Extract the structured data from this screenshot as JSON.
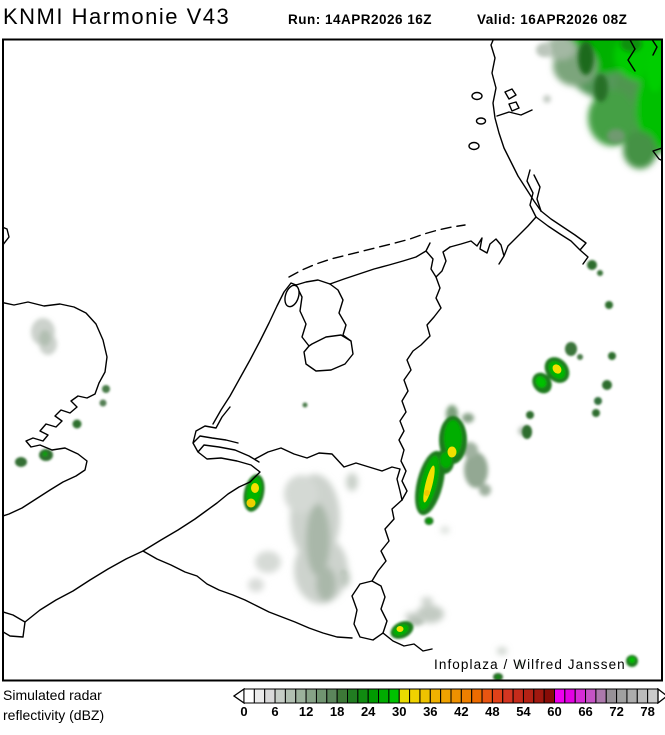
{
  "header": {
    "model_title": "KNMI Harmonie V43",
    "run_label": "Run: 14APR2026 16Z",
    "valid_label": "Valid: 16APR2026 08Z"
  },
  "map": {
    "attribution": "Infoplaza / Wilfred Janssen"
  },
  "legend": {
    "label_line1": "Simulated radar",
    "label_line2": "reflectivity (dBZ)",
    "ticks": [
      "0",
      "6",
      "12",
      "18",
      "24",
      "30",
      "36",
      "42",
      "48",
      "54",
      "60",
      "66",
      "72",
      "78"
    ],
    "scale_min": 0,
    "scale_max": 80,
    "cell_step_dbz": 2,
    "cell_colors": [
      "#ffffff",
      "#ebebeb",
      "#d9d9d9",
      "#c6cdc6",
      "#b1bfb1",
      "#9cb19c",
      "#87a287",
      "#719471",
      "#5c865c",
      "#3d7837",
      "#217c21",
      "#108b10",
      "#009a00",
      "#00ac00",
      "#00c100",
      "#e9da00",
      "#efd200",
      "#eec300",
      "#f0b100",
      "#f0a200",
      "#ef9100",
      "#ee7f00",
      "#ed6b00",
      "#e95511",
      "#e04119",
      "#d43521",
      "#c52b1b",
      "#b52215",
      "#a1180f",
      "#880c07",
      "#ef00ef",
      "#e300e3",
      "#d72ad7",
      "#c553c5",
      "#ac79ac",
      "#979197",
      "#a0a0a0",
      "#acacac",
      "#bbbbbb",
      "#cacaca"
    ]
  },
  "palette_notes": {
    "light_precip_gray": "#ccd3cc",
    "moderate_gray_green": "#a9b7a9",
    "dark_green_cell": "#1e7a1e",
    "bright_green_core": "#00b400",
    "yellow_core": "#f2e000"
  }
}
